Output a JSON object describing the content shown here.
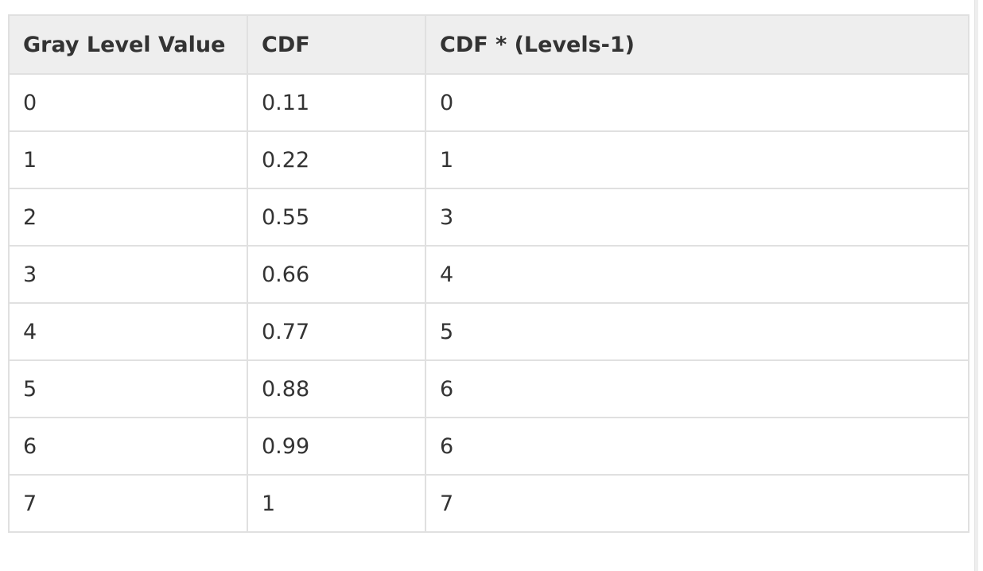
{
  "table": {
    "headers": [
      "Gray Level Value",
      "CDF",
      "CDF * (Levels-1)"
    ],
    "rows": [
      [
        "0",
        "0.11",
        "0"
      ],
      [
        "1",
        "0.22",
        "1"
      ],
      [
        "2",
        "0.55",
        "3"
      ],
      [
        "3",
        "0.66",
        "4"
      ],
      [
        "4",
        "0.77",
        "5"
      ],
      [
        "5",
        "0.88",
        "6"
      ],
      [
        "6",
        "0.99",
        "6"
      ],
      [
        "7",
        "1",
        "7"
      ]
    ]
  },
  "colors": {
    "header_bg": "#eeeeee",
    "border": "#e0e0e0",
    "text": "#333333"
  }
}
